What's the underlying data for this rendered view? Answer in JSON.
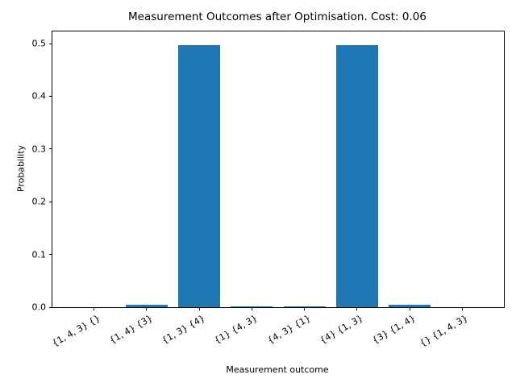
{
  "chart_data": {
    "type": "bar",
    "title": "Measurement Outcomes after Optimisation. Cost: 0.06",
    "xlabel": "Measurement outcome",
    "ylabel": "Probability",
    "categories": [
      "{1, 4, 3} {}",
      "{1, 4} {3}",
      "{1, 3} {4}",
      "{1} {4, 3}",
      "{4, 3} {1}",
      "{4} {1, 3}",
      "{3} {1, 4}",
      "{} {1, 4, 3}"
    ],
    "values": [
      0.0,
      0.004,
      0.497,
      0.002,
      0.002,
      0.497,
      0.004,
      0.0
    ],
    "yticks": [
      0.0,
      0.1,
      0.2,
      0.3,
      0.4,
      0.5
    ],
    "ylim": [
      0,
      0.523
    ],
    "bar_color": "#1f77b4",
    "grid": false,
    "legend_position": "none"
  }
}
